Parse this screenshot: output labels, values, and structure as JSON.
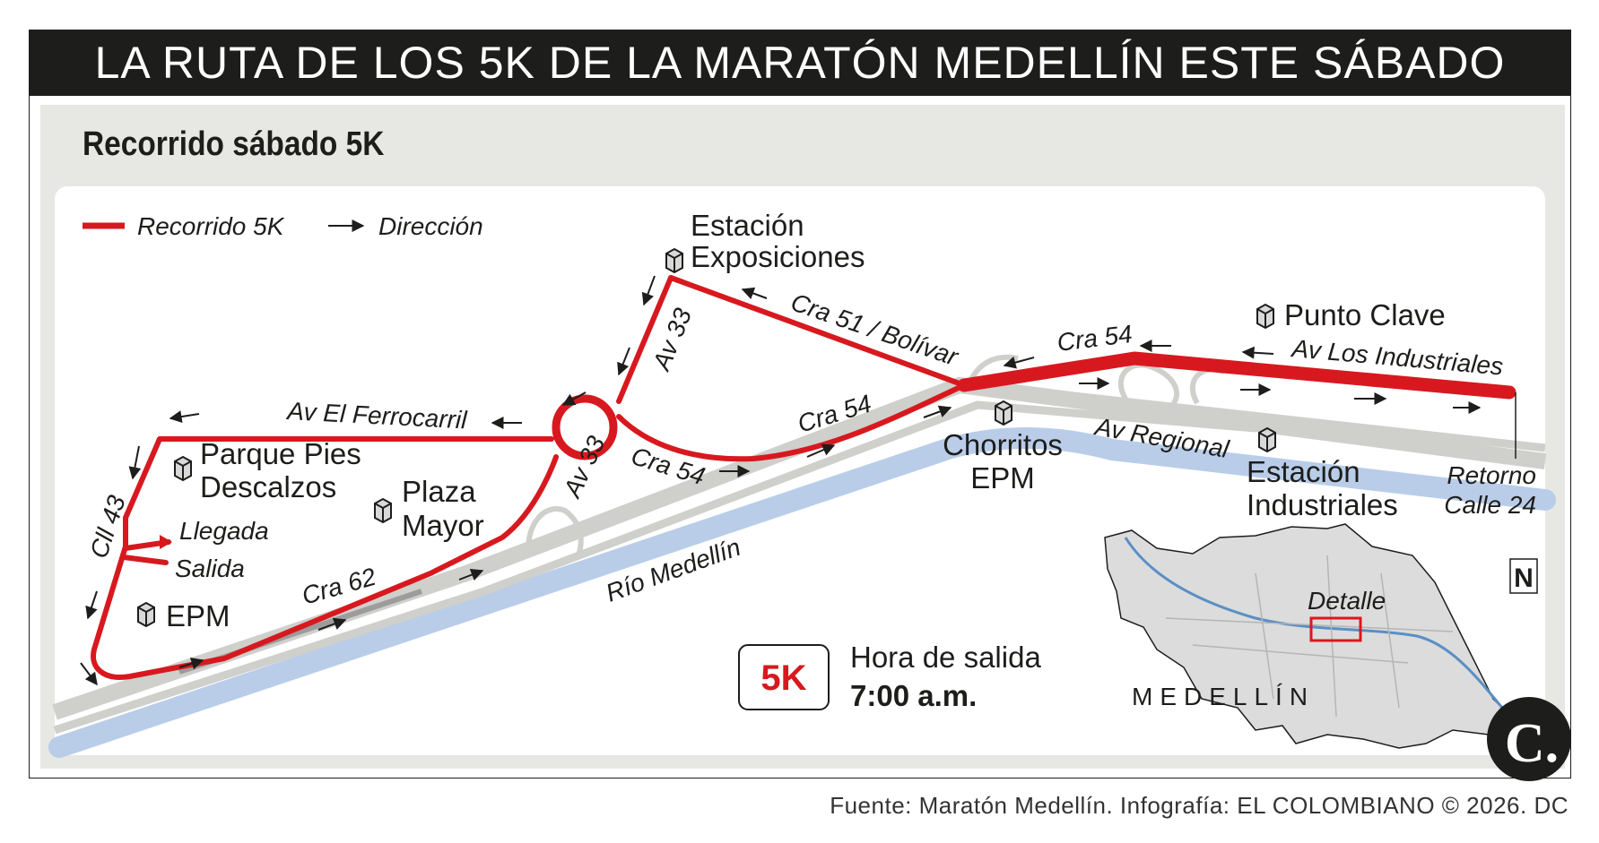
{
  "title": "LA RUTA DE LOS 5K DE LA MARATÓN MEDELLÍN ESTE SÁBADO",
  "subtitle": "Recorrido sábado 5K",
  "legend": {
    "route_label": "Recorrido 5K",
    "direction_label": "Dirección"
  },
  "streets": {
    "cra_51_bolivar": "Cra 51 / Bolívar",
    "cra_54_top": "Cra 54",
    "av_los_industriales": "Av Los Industriales",
    "av_33_top": "Av 33",
    "av_el_ferrocarril": "Av El Ferrocarril",
    "av_33_bottom": "Av 33",
    "cra_54_middle": "Cra 54",
    "cra_54_lower": "Cra 54",
    "av_regional": "Av Regional",
    "cll_43": "Cll 43",
    "cra_62": "Cra 62",
    "rio_medellin": "Río Medellín"
  },
  "places": {
    "estacion_exposiciones": [
      "Estación",
      "Exposiciones"
    ],
    "punto_clave": "Punto Clave",
    "parque_pies_descalzos": [
      "Parque Pies",
      "Descalzos"
    ],
    "plaza_mayor": [
      "Plaza",
      "Mayor"
    ],
    "chorritos_epm": [
      "Chorritos",
      "EPM"
    ],
    "estacion_industriales": [
      "Estación",
      "Industriales"
    ],
    "epm": "EPM",
    "retorno": [
      "Retorno",
      "Calle 24"
    ]
  },
  "markers": {
    "llegada": "Llegada",
    "salida": "Salida"
  },
  "info": {
    "badge": "5K",
    "label": "Hora de salida",
    "time": "7:00 a.m."
  },
  "inset": {
    "detalle": "Detalle",
    "city": "MEDELLÍN",
    "north": "N"
  },
  "logo_letter": "C.",
  "source": "Fuente: Maratón Medellín. Infografía: EL COLOMBIANO © 2026. DC",
  "colors": {
    "route": "#d7191f",
    "river": "#b9cde9",
    "road": "#cfcfcc",
    "panel": "#e7e7e4",
    "title_bg": "#1d1d1b"
  }
}
